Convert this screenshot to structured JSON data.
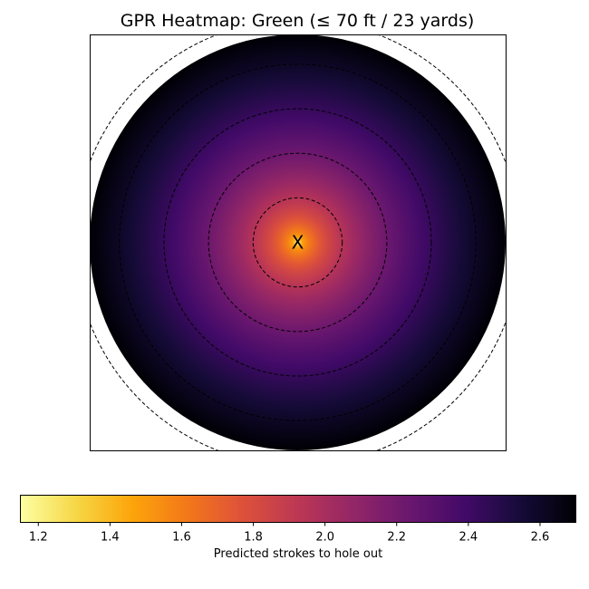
{
  "chart_data": {
    "type": "heatmap",
    "title": "GPR Heatmap: Green (≤ 70 ft / 23 yards)",
    "colormap": "inferno",
    "hole_marker": "X",
    "value_at_hole": 1.2,
    "value_at_edge": 2.7,
    "radius_max_ft": 70,
    "contour_radii_ft": [
      15,
      30,
      45,
      60,
      75
    ],
    "colorbar": {
      "label": "Predicted strokes to hole out",
      "range": [
        1.15,
        2.7
      ],
      "ticks": [
        1.2,
        1.4,
        1.6,
        1.8,
        2.0,
        2.2,
        2.4,
        2.6
      ],
      "tick_labels": [
        "1.2",
        "1.4",
        "1.6",
        "1.8",
        "2.0",
        "2.2",
        "2.4",
        "2.6"
      ],
      "orientation": "horizontal"
    },
    "colors": {
      "frame": "#000000",
      "contour": "#000000"
    }
  }
}
